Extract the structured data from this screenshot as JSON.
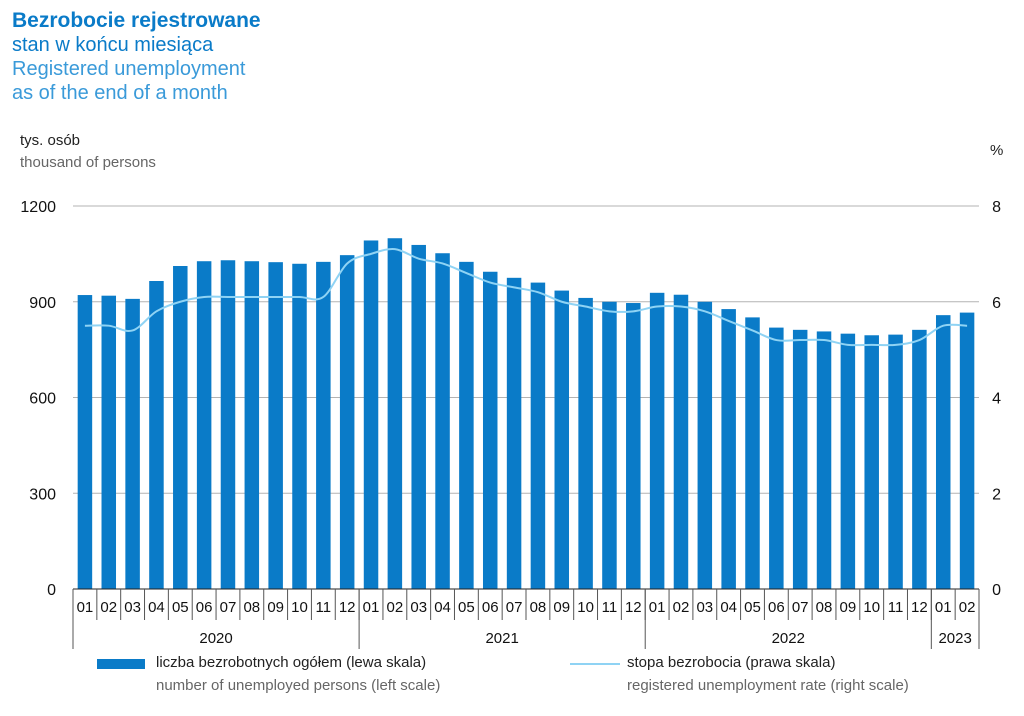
{
  "title": {
    "pl_bold": "Bezrobocie rejestrowane",
    "pl": "stan w końcu miesiąca",
    "en1": "Registered unemployment",
    "en2": "as of the end of a month"
  },
  "left_unit": {
    "pl": "tys. osób",
    "en": "thousand of persons"
  },
  "right_unit": "%",
  "legend": {
    "bars_pl": "liczba bezrobotnych ogółem (lewa skala)",
    "bars_en": "number of unemployed persons (left scale)",
    "line_pl": "stopa bezrobocia (prawa skala)",
    "line_en": "registered unemployment rate (right scale)"
  },
  "colors": {
    "bar": "#0a7bc8",
    "line": "#8fd3f4",
    "grid": "#b3b3b3"
  },
  "chart_data": {
    "type": "bar",
    "categories": [
      "01",
      "02",
      "03",
      "04",
      "05",
      "06",
      "07",
      "08",
      "09",
      "10",
      "11",
      "12",
      "01",
      "02",
      "03",
      "04",
      "05",
      "06",
      "07",
      "08",
      "09",
      "10",
      "11",
      "12",
      "01",
      "02",
      "03",
      "04",
      "05",
      "06",
      "07",
      "08",
      "09",
      "10",
      "11",
      "12",
      "01",
      "02"
    ],
    "years": [
      {
        "label": "2020",
        "count": 12
      },
      {
        "label": "2021",
        "count": 12
      },
      {
        "label": "2022",
        "count": 12
      },
      {
        "label": "2023",
        "count": 2
      }
    ],
    "series": [
      {
        "name": "liczba bezrobotnych ogółem (lewa skala)",
        "axis": "left",
        "type": "bar",
        "values": [
          921,
          919,
          909,
          965,
          1012,
          1027,
          1030,
          1027,
          1024,
          1019,
          1025,
          1046,
          1092,
          1099,
          1078,
          1052,
          1025,
          994,
          975,
          960,
          935,
          912,
          900,
          896,
          928,
          922,
          900,
          877,
          851,
          819,
          812,
          807,
          800,
          795,
          797,
          812,
          858,
          866
        ]
      },
      {
        "name": "stopa bezrobocia (prawa skala)",
        "axis": "right",
        "type": "line",
        "values": [
          5.5,
          5.5,
          5.4,
          5.8,
          6.0,
          6.1,
          6.1,
          6.1,
          6.1,
          6.1,
          6.1,
          6.8,
          7.0,
          7.1,
          6.9,
          6.8,
          6.6,
          6.4,
          6.3,
          6.2,
          6.0,
          5.9,
          5.8,
          5.8,
          5.9,
          5.9,
          5.8,
          5.6,
          5.4,
          5.2,
          5.2,
          5.2,
          5.1,
          5.1,
          5.1,
          5.2,
          5.5,
          5.5
        ]
      }
    ],
    "yticks_left": [
      0,
      300,
      600,
      900,
      1200
    ],
    "ylim_left": [
      0,
      1200
    ],
    "yticks_right": [
      0,
      2,
      4,
      6,
      8
    ],
    "ylim_right": [
      0,
      8
    ],
    "grid": true
  }
}
